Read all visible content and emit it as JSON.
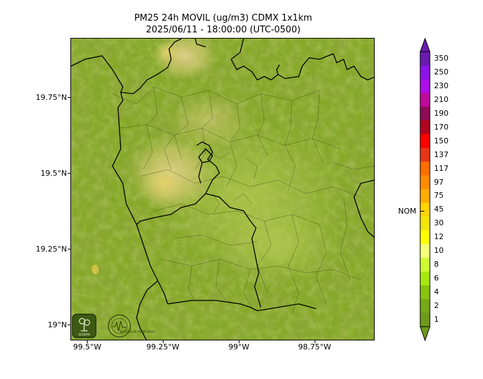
{
  "title": {
    "line1": "PM25 24h MOVIL (ug/m3) CDMX 1x1km",
    "line2": "2025/06/11 - 18:00:00 (UTC-0500)"
  },
  "map": {
    "lat_labels": [
      "19.75°N",
      "19.5°N",
      "19.25°N",
      "19°N"
    ],
    "lon_labels": [
      "99.5°W",
      "99.25°W",
      "99°W",
      "98.75°W"
    ],
    "colors": {
      "base_green": "#7fa21e",
      "dark_green": "#5e7f14",
      "light_green": "#9fc03a",
      "yellow_haze": "#d7d27a",
      "pale_haze": "#d9c9a0",
      "boundary": "#000000"
    },
    "logos": [
      "sedema-logo",
      "seismology-logo"
    ],
    "logo_text": [
      "SEDEMA",
      "SISTEMA DE MONITOREO"
    ]
  },
  "colorbar": {
    "labels": [
      "350",
      "250",
      "230",
      "210",
      "190",
      "170",
      "150",
      "137",
      "117",
      "97",
      "75",
      "45",
      "30",
      "12",
      "10",
      "8",
      "6",
      "4",
      "2",
      "1"
    ],
    "colors": [
      "#6a1bb0",
      "#8b13e6",
      "#ad0ee8",
      "#c00a9c",
      "#8e0b55",
      "#b0051e",
      "#ff0000",
      "#e93418",
      "#ff6d00",
      "#ff8c00",
      "#ffad00",
      "#ffd400",
      "#f2e60a",
      "#ffff00",
      "#f6ff7a",
      "#cdfa32",
      "#a8e80e",
      "#87c50f",
      "#76a815",
      "#6e9a1a"
    ],
    "nom_label": "NOM"
  }
}
